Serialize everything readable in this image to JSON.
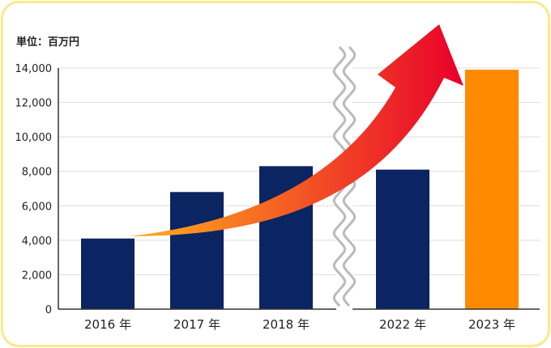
{
  "unit_label": "単位：百万円",
  "colors": {
    "bar": "#0b2462",
    "highlight": "#ff8a00",
    "arrow_start": "#ffb21e",
    "arrow_end": "#e8002a",
    "grid": "#dddddd",
    "break": "#bbbbbb",
    "border": "#fbe98a"
  },
  "chart_data": {
    "type": "bar",
    "categories": [
      "2016 年",
      "2017 年",
      "2018 年",
      "2022 年",
      "2023 年"
    ],
    "values": [
      4100,
      6800,
      8300,
      8100,
      13900
    ],
    "highlight_index": 4,
    "axis_break_between": [
      2,
      3
    ],
    "ylim": [
      0,
      14000
    ],
    "yticks": [
      0,
      2000,
      4000,
      6000,
      8000,
      10000,
      12000,
      14000
    ],
    "ytick_labels": [
      "0",
      "2,000",
      "4,000",
      "6,000",
      "8,000",
      "10,000",
      "12,000",
      "14,000"
    ],
    "grid": true,
    "title": "",
    "xlabel": "",
    "ylabel": "",
    "annotation": "growth-arrow"
  }
}
